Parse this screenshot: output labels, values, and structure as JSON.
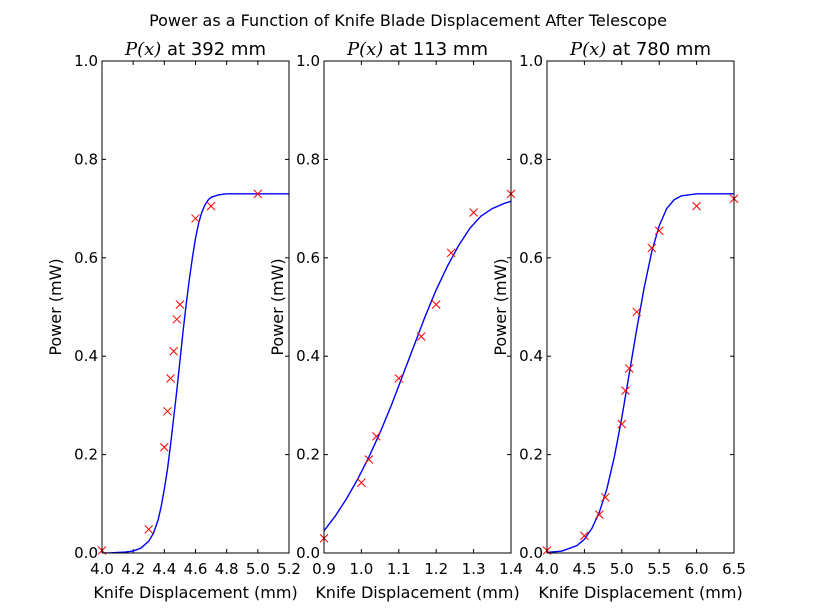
{
  "figure": {
    "suptitle": "Power as a Function of Knife Blade Displacement After Telescope",
    "fit_color": "#0000ff",
    "marker_color": "#ff0000"
  },
  "chart_data": [
    {
      "type": "scatter",
      "title": "$P(x)$ at 392 mm",
      "title_math": "P(x)",
      "title_rest": " at 392 mm",
      "xlabel": "Knife Displacement (mm)",
      "ylabel": "Power (mW)",
      "xlim": [
        4.0,
        5.2
      ],
      "ylim": [
        0.0,
        1.0
      ],
      "xticks": [
        "4.0",
        "4.2",
        "4.4",
        "4.6",
        "4.8",
        "5.0",
        "5.2"
      ],
      "yticks": [
        "0.0",
        "0.2",
        "0.4",
        "0.6",
        "0.8",
        "1.0"
      ],
      "series": [
        {
          "marker": "x",
          "x": [
            4.0,
            4.3,
            4.4,
            4.42,
            4.44,
            4.46,
            4.48,
            4.5,
            4.6,
            4.7,
            5.0
          ],
          "y": [
            0.005,
            0.048,
            0.215,
            0.288,
            0.355,
            0.41,
            0.475,
            0.505,
            0.68,
            0.705,
            0.73
          ]
        },
        {
          "line": "fit",
          "x": [
            4.0,
            4.05,
            4.1,
            4.15,
            4.2,
            4.25,
            4.3,
            4.33,
            4.36,
            4.38,
            4.4,
            4.42,
            4.44,
            4.46,
            4.48,
            4.5,
            4.52,
            4.54,
            4.56,
            4.58,
            4.6,
            4.62,
            4.64,
            4.66,
            4.68,
            4.7,
            4.75,
            4.8,
            4.9,
            5.0,
            5.1,
            5.2
          ],
          "y": [
            0.0,
            0.0,
            0.001,
            0.002,
            0.004,
            0.01,
            0.024,
            0.04,
            0.067,
            0.095,
            0.13,
            0.17,
            0.22,
            0.275,
            0.33,
            0.39,
            0.45,
            0.505,
            0.555,
            0.6,
            0.64,
            0.67,
            0.692,
            0.707,
            0.717,
            0.723,
            0.728,
            0.73,
            0.73,
            0.73,
            0.73,
            0.73
          ]
        }
      ]
    },
    {
      "type": "scatter",
      "title": "$P(x)$ at 113 mm",
      "title_math": "P(x)",
      "title_rest": " at 113 mm",
      "xlabel": "Knife Displacement (mm)",
      "ylabel": "Power (mW)",
      "xlim": [
        0.9,
        1.4
      ],
      "ylim": [
        0.0,
        1.0
      ],
      "xticks": [
        "0.9",
        "1.0",
        "1.1",
        "1.2",
        "1.3",
        "1.4"
      ],
      "yticks": [
        "0.0",
        "0.2",
        "0.4",
        "0.6",
        "0.8",
        "1.0"
      ],
      "series": [
        {
          "marker": "x",
          "x": [
            0.9,
            1.0,
            1.02,
            1.04,
            1.1,
            1.16,
            1.2,
            1.24,
            1.3,
            1.4
          ],
          "y": [
            0.03,
            0.143,
            0.19,
            0.237,
            0.355,
            0.44,
            0.505,
            0.61,
            0.692,
            0.73
          ]
        },
        {
          "line": "fit",
          "x": [
            0.9,
            0.93,
            0.96,
            0.99,
            1.02,
            1.05,
            1.08,
            1.11,
            1.14,
            1.17,
            1.2,
            1.23,
            1.26,
            1.29,
            1.32,
            1.35,
            1.38,
            1.4
          ],
          "y": [
            0.045,
            0.075,
            0.11,
            0.15,
            0.195,
            0.245,
            0.3,
            0.36,
            0.42,
            0.48,
            0.535,
            0.583,
            0.625,
            0.66,
            0.685,
            0.7,
            0.71,
            0.715
          ]
        }
      ]
    },
    {
      "type": "scatter",
      "title": "$P(x)$ at 780 mm",
      "title_math": "P(x)",
      "title_rest": " at 780 mm",
      "xlabel": "Knife Displacement (mm)",
      "ylabel": "Power (mW)",
      "xlim": [
        4.0,
        6.5
      ],
      "ylim": [
        0.0,
        1.0
      ],
      "xticks": [
        "4.0",
        "4.5",
        "5.0",
        "5.5",
        "6.0",
        "6.5"
      ],
      "yticks": [
        "0.0",
        "0.2",
        "0.4",
        "0.6",
        "0.8",
        "1.0"
      ],
      "series": [
        {
          "marker": "x",
          "x": [
            4.0,
            4.5,
            4.7,
            4.78,
            5.0,
            5.05,
            5.1,
            5.2,
            5.4,
            5.5,
            6.0,
            6.5
          ],
          "y": [
            0.005,
            0.035,
            0.078,
            0.113,
            0.262,
            0.33,
            0.375,
            0.49,
            0.62,
            0.655,
            0.705,
            0.72
          ]
        },
        {
          "line": "fit",
          "x": [
            4.0,
            4.2,
            4.4,
            4.5,
            4.6,
            4.7,
            4.8,
            4.9,
            5.0,
            5.1,
            5.2,
            5.3,
            5.4,
            5.5,
            5.6,
            5.7,
            5.8,
            6.0,
            6.2,
            6.5
          ],
          "y": [
            0.001,
            0.004,
            0.015,
            0.028,
            0.05,
            0.083,
            0.13,
            0.195,
            0.275,
            0.365,
            0.455,
            0.54,
            0.612,
            0.665,
            0.7,
            0.718,
            0.726,
            0.73,
            0.73,
            0.73
          ]
        }
      ]
    }
  ]
}
